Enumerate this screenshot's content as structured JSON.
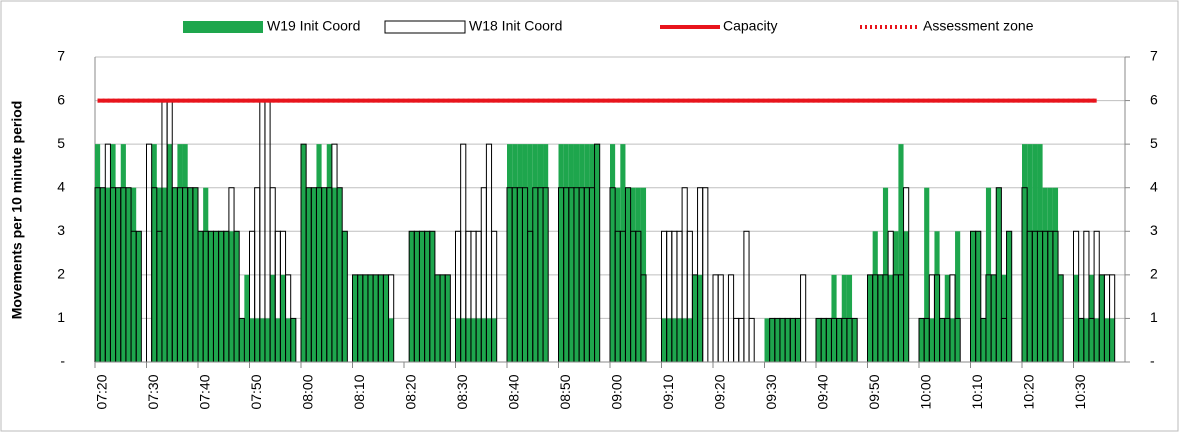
{
  "chart_data": {
    "type": "bar",
    "y_label": "Movements per 10 minute period",
    "categories": [
      "07:20",
      null,
      null,
      null,
      null,
      null,
      null,
      null,
      null,
      null,
      "07:30",
      null,
      null,
      null,
      null,
      null,
      null,
      null,
      null,
      null,
      "07:40",
      null,
      null,
      null,
      null,
      null,
      null,
      null,
      null,
      null,
      "07:50",
      null,
      null,
      null,
      null,
      null,
      null,
      null,
      null,
      null,
      "08:00",
      null,
      null,
      null,
      null,
      null,
      null,
      null,
      null,
      null,
      "08:10",
      null,
      null,
      null,
      null,
      null,
      null,
      null,
      null,
      null,
      "08:20",
      null,
      null,
      null,
      null,
      null,
      null,
      null,
      null,
      null,
      "08:30",
      null,
      null,
      null,
      null,
      null,
      null,
      null,
      null,
      null,
      "08:40",
      null,
      null,
      null,
      null,
      null,
      null,
      null,
      null,
      null,
      "08:50",
      null,
      null,
      null,
      null,
      null,
      null,
      null,
      null,
      null,
      "09:00",
      null,
      null,
      null,
      null,
      null,
      null,
      null,
      null,
      null,
      "09:10",
      null,
      null,
      null,
      null,
      null,
      null,
      null,
      null,
      null,
      "09:20",
      null,
      null,
      null,
      null,
      null,
      null,
      null,
      null,
      null,
      "09:30",
      null,
      null,
      null,
      null,
      null,
      null,
      null,
      null,
      null,
      "09:40",
      null,
      null,
      null,
      null,
      null,
      null,
      null,
      null,
      null,
      "09:50",
      null,
      null,
      null,
      null,
      null,
      null,
      null,
      null,
      null,
      "10:00",
      null,
      null,
      null,
      null,
      null,
      null,
      null,
      null,
      null,
      "10:10",
      null,
      null,
      null,
      null,
      null,
      null,
      null,
      null,
      null,
      "10:20",
      null,
      null,
      null,
      null,
      null,
      null,
      null,
      null,
      null,
      "10:30",
      null,
      null,
      null,
      null,
      null,
      null,
      null,
      null,
      null
    ],
    "series": [
      {
        "name": "W19 Init Coord",
        "color": "#1ea64d",
        "style": "filled",
        "values": [
          5,
          4,
          4,
          5,
          4,
          5,
          4,
          4,
          3,
          0,
          0,
          5,
          4,
          4,
          5,
          4,
          5,
          5,
          4,
          4,
          3,
          4,
          3,
          3,
          3,
          3,
          3,
          3,
          1,
          2,
          1,
          1,
          1,
          1,
          2,
          1,
          2,
          1,
          1,
          0,
          5,
          4,
          4,
          5,
          4,
          5,
          4,
          4,
          3,
          0,
          2,
          2,
          2,
          2,
          2,
          2,
          2,
          1,
          0,
          0,
          0,
          3,
          3,
          3,
          3,
          3,
          2,
          2,
          2,
          0,
          1,
          1,
          1,
          1,
          1,
          1,
          1,
          1,
          0,
          0,
          5,
          5,
          5,
          5,
          5,
          5,
          5,
          5,
          0,
          0,
          5,
          5,
          5,
          5,
          5,
          5,
          5,
          5,
          0,
          0,
          5,
          4,
          5,
          4,
          4,
          4,
          4,
          0,
          0,
          0,
          1,
          1,
          1,
          1,
          1,
          1,
          2,
          2,
          0,
          0,
          0,
          0,
          0,
          0,
          0,
          0,
          0,
          0,
          0,
          0,
          1,
          1,
          1,
          1,
          1,
          1,
          1,
          0,
          0,
          0,
          1,
          1,
          1,
          2,
          1,
          2,
          2,
          1,
          0,
          0,
          2,
          3,
          2,
          4,
          2,
          3,
          5,
          3,
          0,
          0,
          1,
          4,
          1,
          3,
          1,
          2,
          1,
          3,
          0,
          0,
          3,
          3,
          1,
          4,
          2,
          4,
          2,
          3,
          0,
          0,
          5,
          5,
          5,
          5,
          4,
          4,
          4,
          2,
          0,
          0,
          2,
          1,
          1,
          2,
          1,
          2,
          1,
          1,
          0,
          0
        ]
      },
      {
        "name": "W18 Init Coord",
        "color": "#000000",
        "style": "outline",
        "values": [
          4,
          4,
          5,
          4,
          4,
          4,
          4,
          3,
          3,
          0,
          5,
          4,
          3,
          6,
          6,
          4,
          4,
          4,
          4,
          4,
          3,
          3,
          3,
          3,
          3,
          3,
          4,
          3,
          1,
          0,
          3,
          4,
          6,
          6,
          4,
          3,
          3,
          2,
          1,
          0,
          5,
          4,
          4,
          4,
          4,
          4,
          5,
          4,
          3,
          0,
          2,
          2,
          2,
          2,
          2,
          2,
          2,
          2,
          0,
          0,
          0,
          3,
          3,
          3,
          3,
          3,
          2,
          2,
          2,
          0,
          3,
          5,
          3,
          3,
          3,
          4,
          5,
          3,
          0,
          0,
          4,
          4,
          4,
          4,
          3,
          4,
          4,
          4,
          0,
          0,
          4,
          4,
          4,
          4,
          4,
          4,
          4,
          5,
          0,
          0,
          4,
          3,
          3,
          4,
          3,
          3,
          2,
          0,
          0,
          0,
          3,
          3,
          3,
          3,
          4,
          3,
          2,
          4,
          4,
          0,
          2,
          2,
          0,
          2,
          1,
          1,
          3,
          1,
          0,
          0,
          0,
          1,
          1,
          1,
          1,
          1,
          1,
          2,
          0,
          0,
          1,
          1,
          1,
          1,
          1,
          1,
          1,
          1,
          0,
          0,
          2,
          2,
          2,
          2,
          3,
          2,
          2,
          4,
          0,
          0,
          1,
          1,
          2,
          2,
          1,
          1,
          2,
          1,
          0,
          0,
          3,
          3,
          1,
          2,
          2,
          4,
          1,
          3,
          0,
          0,
          4,
          3,
          3,
          3,
          3,
          3,
          3,
          2,
          0,
          0,
          3,
          1,
          3,
          1,
          3,
          2,
          2,
          2,
          0,
          0
        ]
      }
    ],
    "lines": [
      {
        "name": "Capacity",
        "color": "#e8141c",
        "style": "solid",
        "value": 6
      },
      {
        "name": "Assessment zone",
        "color": "#e8141c",
        "style": "dotted",
        "value": 6
      }
    ],
    "ylim": [
      0,
      7
    ],
    "yticks": [
      {
        "value": 0,
        "label": "-"
      },
      1,
      2,
      3,
      4,
      5,
      6,
      7
    ],
    "y2lim": [
      0,
      7
    ],
    "y2ticks": [
      {
        "value": 0,
        "label": "-"
      },
      1,
      2,
      3,
      4,
      5,
      6,
      7
    ],
    "grid": true
  }
}
